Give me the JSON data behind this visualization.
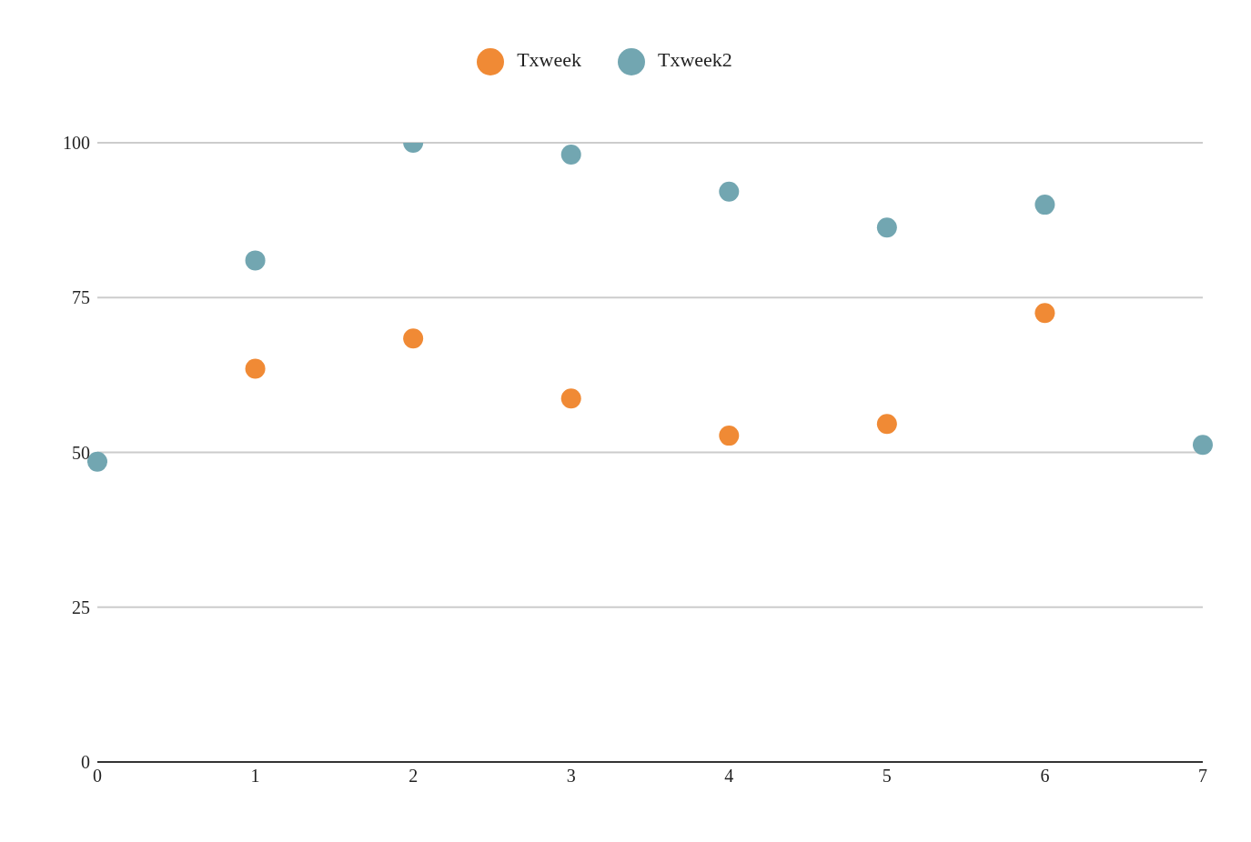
{
  "chart_data": {
    "type": "scatter",
    "categories": [
      "0",
      "1",
      "2",
      "3",
      "4",
      "5",
      "6",
      "7"
    ],
    "series": [
      {
        "name": "Txweek",
        "color": "#f08a35",
        "values": [
          null,
          63.5,
          68.4,
          58.7,
          52.7,
          54.6,
          72.5,
          null
        ]
      },
      {
        "name": "Txweek2",
        "color": "#72a6b1",
        "values": [
          48.5,
          81.0,
          100,
          98.1,
          92.1,
          86.3,
          90.0,
          51.2
        ]
      }
    ],
    "ylim": [
      0,
      100
    ],
    "yticks": [
      0,
      25,
      50,
      75,
      100
    ],
    "grid": "y",
    "legend": "top",
    "marker": "circle"
  }
}
